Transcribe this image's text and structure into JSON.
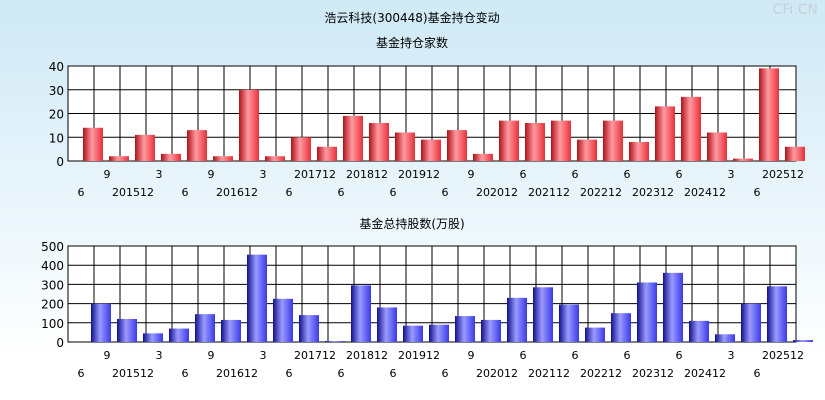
{
  "title": "浩云科技(300448)基金持仓变动",
  "watermark": "CFi.CN",
  "colors": {
    "red_bar": "#e8303a",
    "red_bar_dark": "#b01018",
    "red_bar_light": "#ff9aa0",
    "blue_bar": "#3a3ae8",
    "blue_bar_dark": "#10108a",
    "blue_bar_light": "#9a9aff"
  },
  "x_labels": {
    "row1": [
      "",
      "9",
      "",
      "3",
      "",
      "9",
      "",
      "3",
      "",
      "201712",
      "",
      "201812",
      "",
      "201912",
      "",
      "9",
      "",
      "6",
      "",
      "6",
      "",
      "6",
      "",
      "6",
      "",
      "3",
      "",
      "202512"
    ],
    "row2": [
      "6",
      "",
      "201512",
      "",
      "6",
      "",
      "201612",
      "",
      "6",
      "",
      "6",
      "",
      "6",
      "",
      "6",
      "",
      "202012",
      "",
      "202112",
      "",
      "202212",
      "",
      "202312",
      "",
      "202412",
      "",
      "6",
      ""
    ]
  },
  "chart_data": [
    {
      "type": "bar",
      "title": "基金持仓家数",
      "ylim": [
        0,
        40
      ],
      "yticks": [
        0,
        10,
        20,
        30,
        40
      ],
      "values": [
        14,
        2,
        11,
        3,
        13,
        2,
        30,
        2,
        10,
        6,
        19,
        16,
        12,
        9,
        13,
        3,
        17,
        16,
        17,
        9,
        17,
        8,
        23,
        27,
        12,
        1,
        39,
        6
      ]
    },
    {
      "type": "bar",
      "title": "基金总持股数(万股)",
      "ylim": [
        0,
        500
      ],
      "yticks": [
        0,
        100,
        200,
        300,
        400,
        500
      ],
      "values": [
        200,
        120,
        45,
        70,
        145,
        115,
        455,
        225,
        140,
        5,
        295,
        180,
        85,
        90,
        135,
        115,
        230,
        285,
        195,
        75,
        150,
        310,
        360,
        110,
        40,
        200,
        290,
        10
      ]
    }
  ]
}
